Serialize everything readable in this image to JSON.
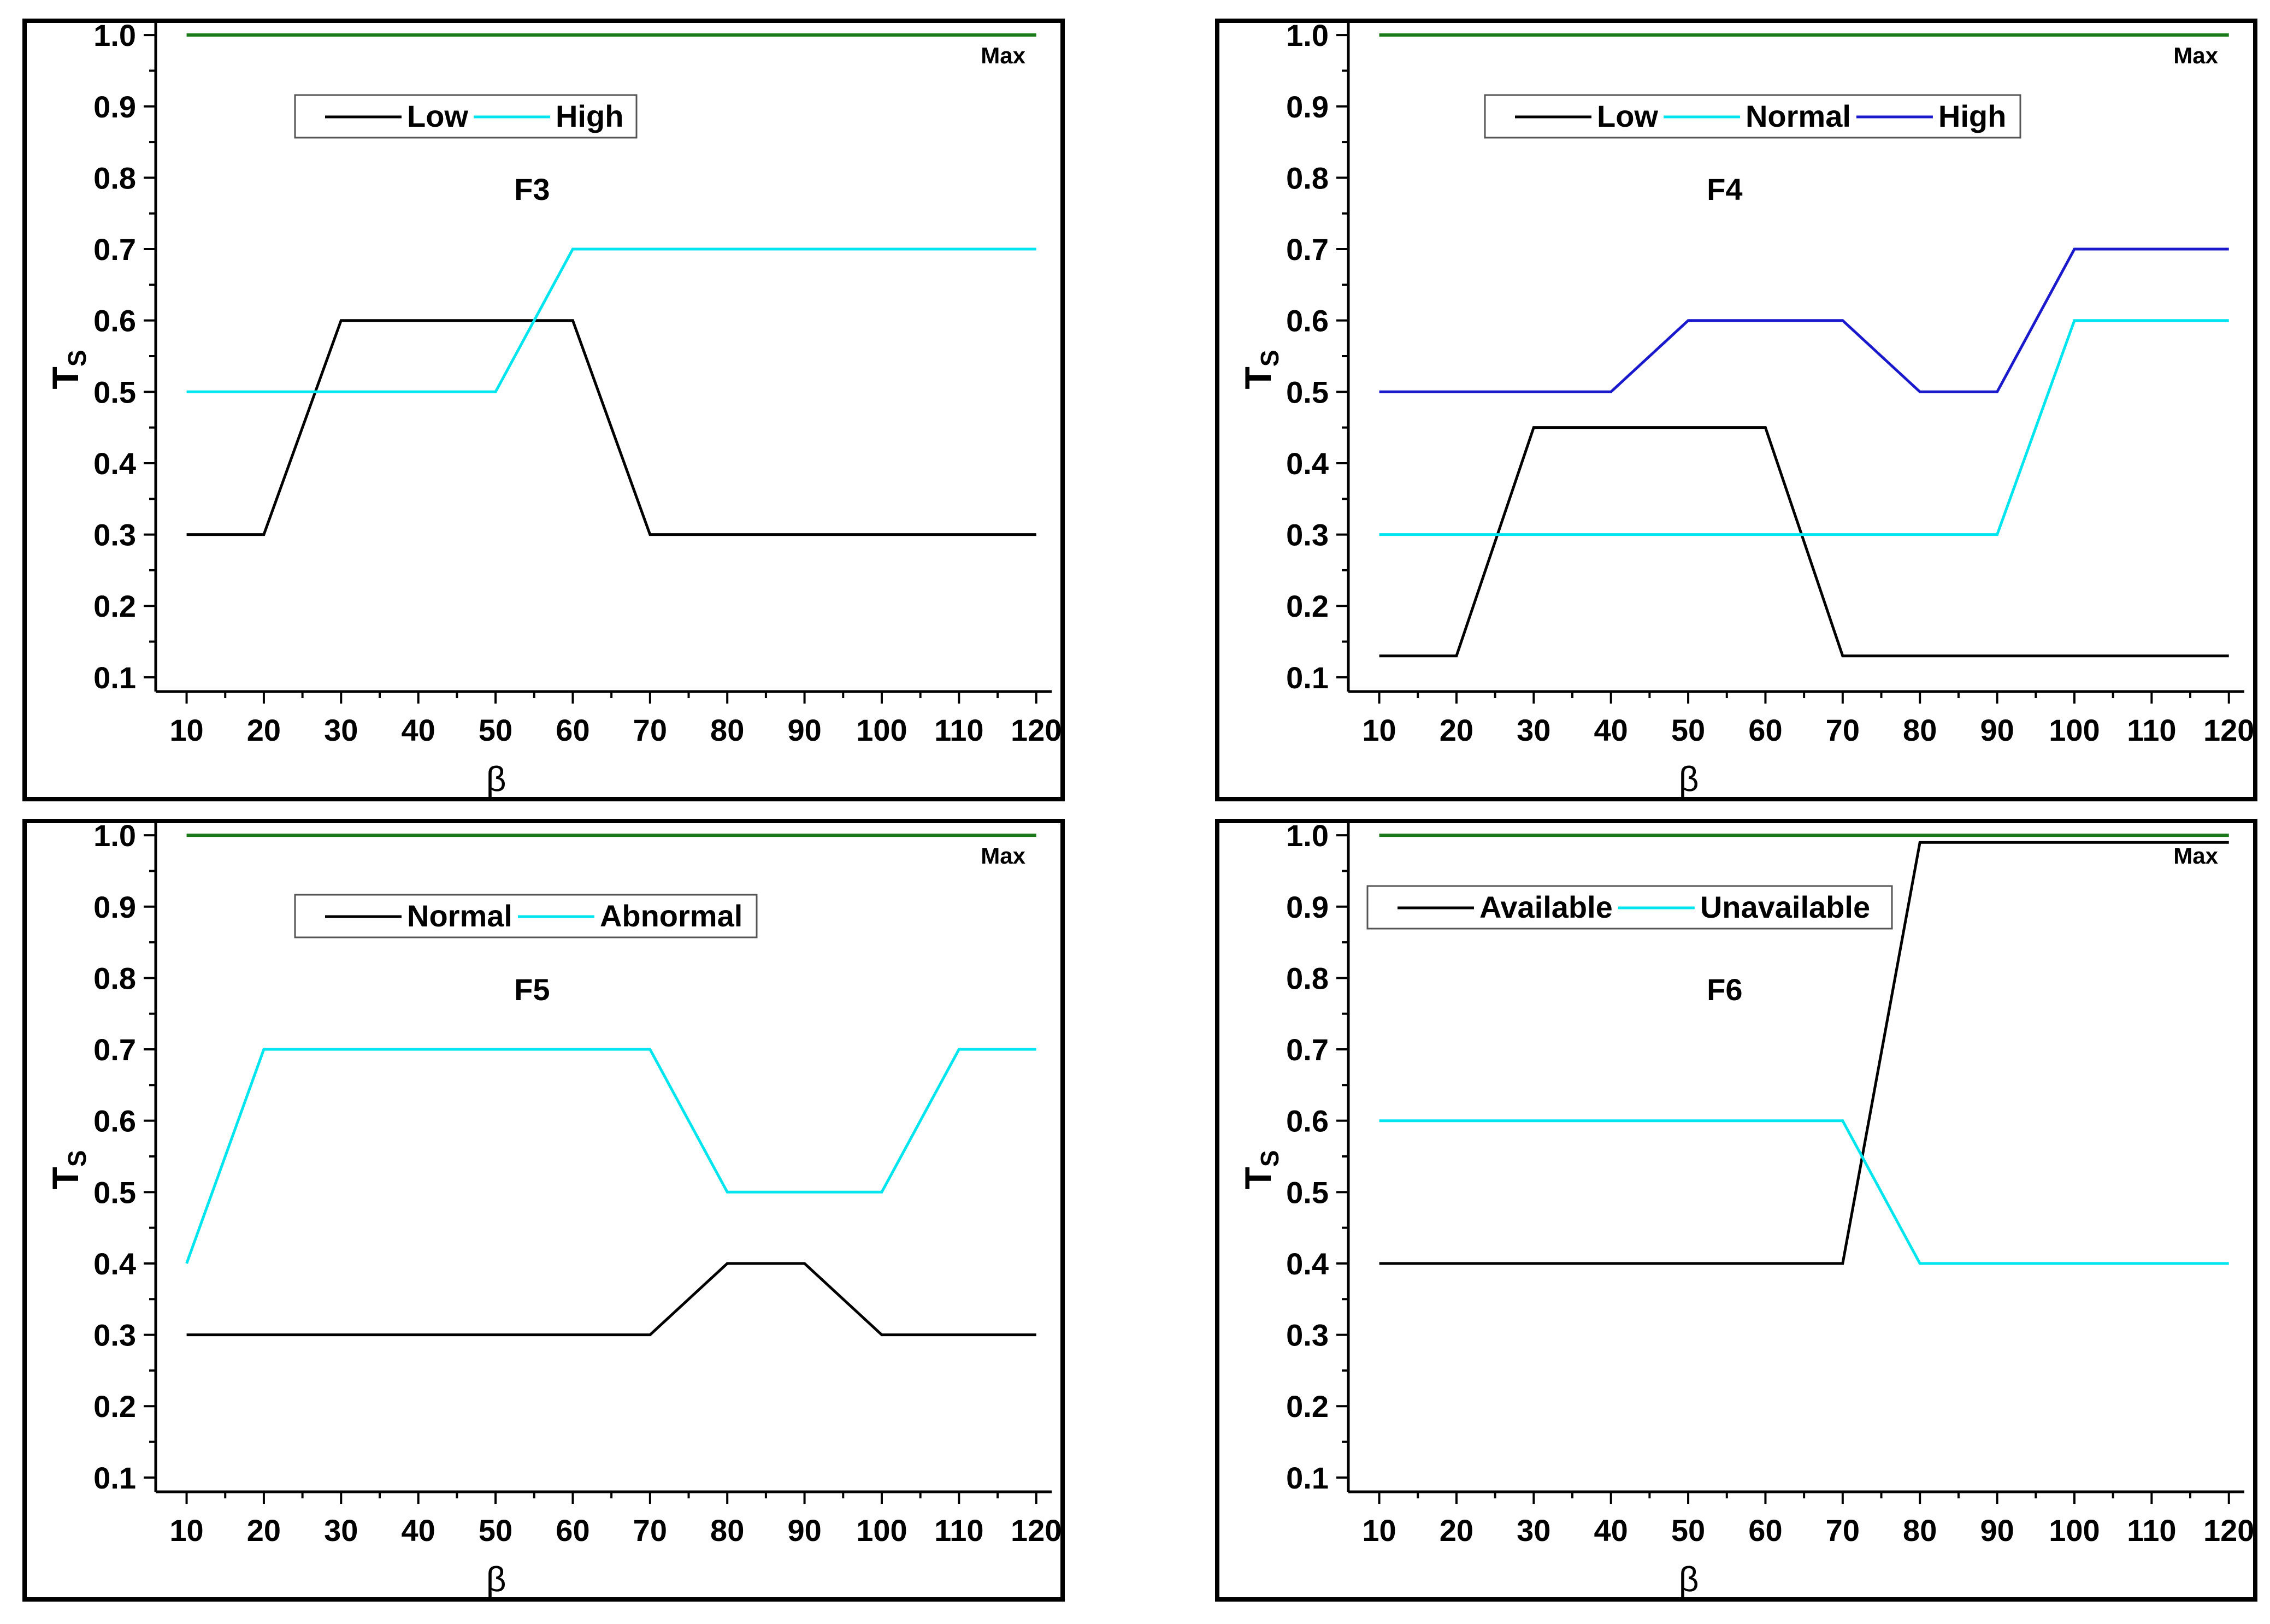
{
  "chart_data": [
    {
      "type": "line",
      "panel_label": "F3",
      "xlabel": "β",
      "ylabel": "T",
      "ylabel_sub": "S",
      "x": [
        10,
        20,
        30,
        40,
        50,
        60,
        70,
        80,
        90,
        100,
        110,
        120
      ],
      "xlim": [
        6,
        122
      ],
      "ylim": [
        0.08,
        1.02
      ],
      "yticks": [
        "0.1",
        "0.2",
        "0.3",
        "0.4",
        "0.5",
        "0.6",
        "0.7",
        "0.8",
        "0.9",
        "1.0"
      ],
      "max_line": {
        "label": "Max",
        "value": 1.0,
        "color": "#1a7a1a"
      },
      "legend_position": "top-left",
      "series": [
        {
          "name": "Low",
          "color": "#000000",
          "values": [
            0.3,
            0.3,
            0.6,
            0.6,
            0.6,
            0.6,
            0.3,
            0.3,
            0.3,
            0.3,
            0.3,
            0.3
          ]
        },
        {
          "name": "High",
          "color": "#00e5ee",
          "values": [
            0.5,
            0.5,
            0.5,
            0.5,
            0.5,
            0.7,
            0.7,
            0.7,
            0.7,
            0.7,
            0.7,
            0.7
          ]
        }
      ]
    },
    {
      "type": "line",
      "panel_label": "F4",
      "xlabel": "β",
      "ylabel": "T",
      "ylabel_sub": "S",
      "x": [
        10,
        20,
        30,
        40,
        50,
        60,
        70,
        80,
        90,
        100,
        110,
        120
      ],
      "xlim": [
        6,
        122
      ],
      "ylim": [
        0.08,
        1.02
      ],
      "yticks": [
        "0.1",
        "0.2",
        "0.3",
        "0.4",
        "0.5",
        "0.6",
        "0.7",
        "0.8",
        "0.9",
        "1.0"
      ],
      "max_line": {
        "label": "Max",
        "value": 1.0,
        "color": "#1a7a1a"
      },
      "legend_position": "top-left",
      "series": [
        {
          "name": "Low",
          "color": "#000000",
          "values": [
            0.13,
            0.13,
            0.45,
            0.45,
            0.45,
            0.45,
            0.13,
            0.13,
            0.13,
            0.13,
            0.13,
            0.13
          ]
        },
        {
          "name": "Normal",
          "color": "#00e5ee",
          "values": [
            0.3,
            0.3,
            0.3,
            0.3,
            0.3,
            0.3,
            0.3,
            0.3,
            0.3,
            0.6,
            0.6,
            0.6
          ]
        },
        {
          "name": "High",
          "color": "#1a1acc",
          "values": [
            0.5,
            0.5,
            0.5,
            0.5,
            0.6,
            0.6,
            0.6,
            0.5,
            0.5,
            0.7,
            0.7,
            0.7
          ]
        }
      ]
    },
    {
      "type": "line",
      "panel_label": "F5",
      "xlabel": "β",
      "ylabel": "T",
      "ylabel_sub": "S",
      "x": [
        10,
        20,
        30,
        40,
        50,
        60,
        70,
        80,
        90,
        100,
        110,
        120
      ],
      "xlim": [
        6,
        122
      ],
      "ylim": [
        0.08,
        1.02
      ],
      "yticks": [
        "0.1",
        "0.2",
        "0.3",
        "0.4",
        "0.5",
        "0.6",
        "0.7",
        "0.8",
        "0.9",
        "1.0"
      ],
      "max_line": {
        "label": "Max",
        "value": 1.0,
        "color": "#1a7a1a"
      },
      "legend_position": "top-left",
      "series": [
        {
          "name": "Normal",
          "color": "#000000",
          "values": [
            0.3,
            0.3,
            0.3,
            0.3,
            0.3,
            0.3,
            0.3,
            0.4,
            0.4,
            0.3,
            0.3,
            0.3
          ]
        },
        {
          "name": "Abnormal",
          "color": "#00e5ee",
          "values": [
            0.4,
            0.7,
            0.7,
            0.7,
            0.7,
            0.7,
            0.7,
            0.5,
            0.5,
            0.5,
            0.7,
            0.7
          ]
        }
      ]
    },
    {
      "type": "line",
      "panel_label": "F6",
      "xlabel": "β",
      "ylabel": "T",
      "ylabel_sub": "S",
      "x": [
        10,
        20,
        30,
        40,
        50,
        60,
        70,
        80,
        90,
        100,
        110,
        120
      ],
      "xlim": [
        6,
        122
      ],
      "ylim": [
        0.08,
        1.02
      ],
      "yticks": [
        "0.1",
        "0.2",
        "0.3",
        "0.4",
        "0.5",
        "0.6",
        "0.7",
        "0.8",
        "0.9",
        "1.0"
      ],
      "max_line": {
        "label": "Max",
        "value": 1.0,
        "color": "#1a7a1a"
      },
      "legend_position": "top-left",
      "series": [
        {
          "name": "Available",
          "color": "#000000",
          "values": [
            0.4,
            0.4,
            0.4,
            0.4,
            0.4,
            0.4,
            0.4,
            0.99,
            0.99,
            0.99,
            0.99,
            0.99
          ]
        },
        {
          "name": "Unavailable",
          "color": "#00e5ee",
          "values": [
            0.6,
            0.6,
            0.6,
            0.6,
            0.6,
            0.6,
            0.6,
            0.4,
            0.4,
            0.4,
            0.4,
            0.4
          ]
        }
      ]
    }
  ]
}
